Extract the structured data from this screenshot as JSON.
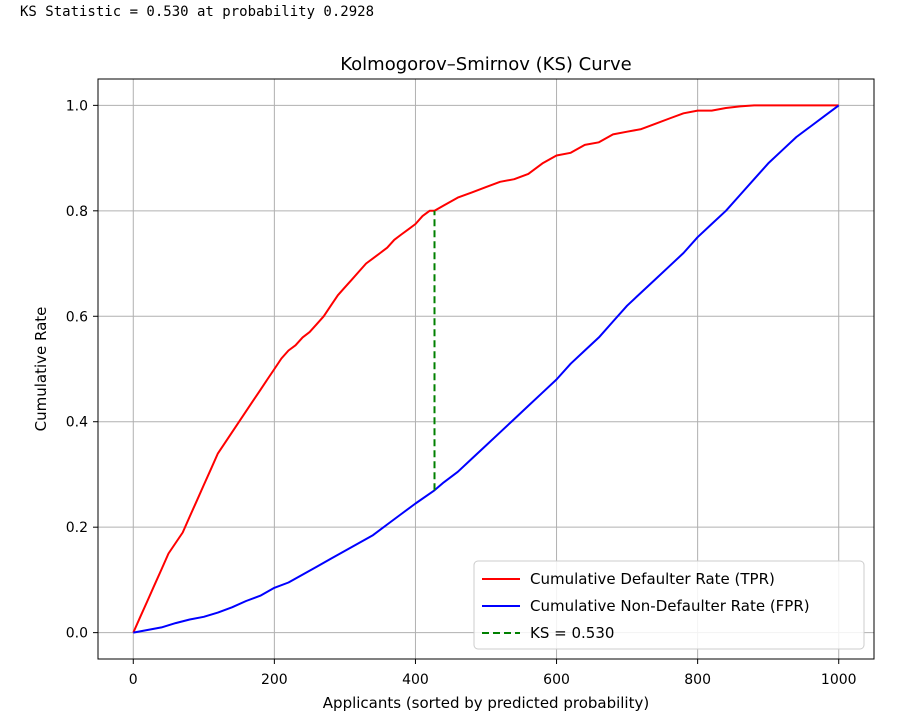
{
  "console": {
    "output": "KS Statistic = 0.530 at probability 0.2928"
  },
  "chart_data": {
    "type": "line",
    "title": "Kolmogorov–Smirnov (KS) Curve",
    "xlabel": "Applicants (sorted by predicted probability)",
    "ylabel": "Cumulative Rate",
    "xlim": [
      -50,
      1050
    ],
    "ylim": [
      -0.05,
      1.05
    ],
    "x_ticks": [
      0,
      200,
      400,
      600,
      800,
      1000
    ],
    "y_ticks": [
      0.0,
      0.2,
      0.4,
      0.6,
      0.8,
      1.0
    ],
    "x_tick_labels": [
      "0",
      "200",
      "400",
      "600",
      "800",
      "1000"
    ],
    "y_tick_labels": [
      "0.0",
      "0.2",
      "0.4",
      "0.6",
      "0.8",
      "1.0"
    ],
    "grid": true,
    "legend_position": "bottom-right",
    "series": [
      {
        "name": "Cumulative Defaulter Rate (TPR)",
        "color": "#ff0000",
        "style": "solid",
        "x": [
          0,
          10,
          20,
          30,
          40,
          50,
          60,
          70,
          80,
          90,
          100,
          110,
          120,
          130,
          140,
          150,
          160,
          170,
          180,
          190,
          200,
          210,
          220,
          230,
          240,
          250,
          260,
          270,
          280,
          290,
          300,
          310,
          320,
          330,
          340,
          350,
          360,
          370,
          380,
          390,
          400,
          410,
          420,
          427,
          440,
          460,
          480,
          500,
          520,
          540,
          560,
          580,
          600,
          620,
          640,
          660,
          680,
          700,
          720,
          740,
          760,
          780,
          800,
          820,
          840,
          860,
          880,
          900,
          1000
        ],
        "y": [
          0.0,
          0.03,
          0.06,
          0.09,
          0.12,
          0.15,
          0.17,
          0.19,
          0.22,
          0.25,
          0.28,
          0.31,
          0.34,
          0.36,
          0.38,
          0.4,
          0.42,
          0.44,
          0.46,
          0.48,
          0.5,
          0.52,
          0.535,
          0.545,
          0.56,
          0.57,
          0.585,
          0.6,
          0.62,
          0.64,
          0.655,
          0.67,
          0.685,
          0.7,
          0.71,
          0.72,
          0.73,
          0.745,
          0.755,
          0.765,
          0.775,
          0.79,
          0.8,
          0.8,
          0.81,
          0.825,
          0.835,
          0.845,
          0.855,
          0.86,
          0.87,
          0.89,
          0.905,
          0.91,
          0.925,
          0.93,
          0.945,
          0.95,
          0.955,
          0.965,
          0.975,
          0.985,
          0.99,
          0.99,
          0.995,
          0.998,
          1.0,
          1.0,
          1.0
        ]
      },
      {
        "name": "Cumulative Non-Defaulter Rate (FPR)",
        "color": "#0000ff",
        "style": "solid",
        "x": [
          0,
          20,
          40,
          60,
          80,
          100,
          120,
          140,
          160,
          180,
          200,
          220,
          240,
          260,
          280,
          300,
          320,
          340,
          360,
          380,
          400,
          427,
          440,
          460,
          480,
          500,
          520,
          540,
          560,
          580,
          600,
          620,
          640,
          660,
          680,
          700,
          720,
          740,
          760,
          780,
          800,
          820,
          840,
          860,
          880,
          900,
          920,
          940,
          960,
          980,
          1000
        ],
        "y": [
          0.0,
          0.005,
          0.01,
          0.018,
          0.025,
          0.03,
          0.038,
          0.048,
          0.06,
          0.07,
          0.085,
          0.095,
          0.11,
          0.125,
          0.14,
          0.155,
          0.17,
          0.185,
          0.205,
          0.225,
          0.245,
          0.27,
          0.285,
          0.305,
          0.33,
          0.355,
          0.38,
          0.405,
          0.43,
          0.455,
          0.48,
          0.51,
          0.535,
          0.56,
          0.59,
          0.62,
          0.645,
          0.67,
          0.695,
          0.72,
          0.75,
          0.775,
          0.8,
          0.83,
          0.86,
          0.89,
          0.915,
          0.94,
          0.96,
          0.98,
          1.0
        ]
      },
      {
        "name": "KS = 0.530",
        "color": "#008000",
        "style": "dashed",
        "x": [
          427,
          427
        ],
        "y": [
          0.27,
          0.8
        ]
      }
    ]
  }
}
